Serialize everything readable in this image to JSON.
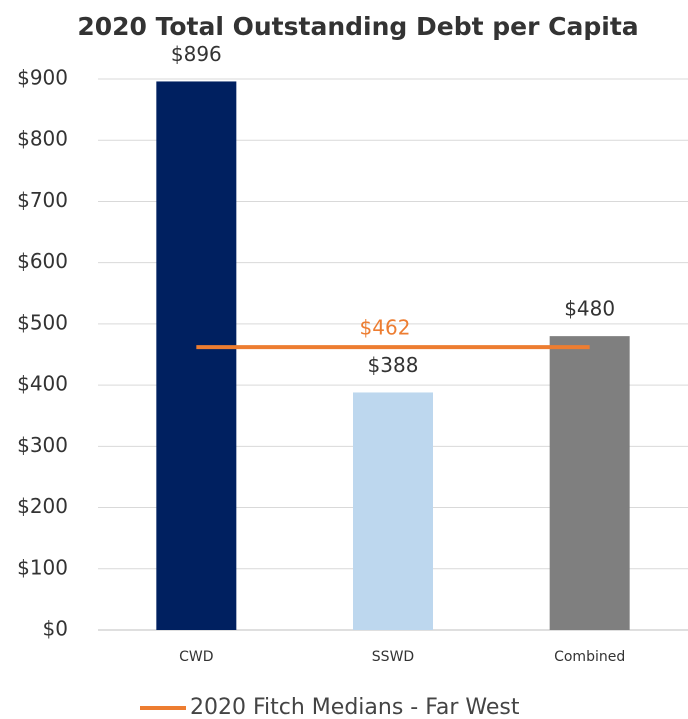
{
  "chart_data": {
    "type": "bar",
    "title": "2020 Total Outstanding Debt per Capita",
    "categories": [
      "CWD",
      "SSWD",
      "Combined"
    ],
    "values": [
      896,
      388,
      480
    ],
    "value_labels": [
      "$896",
      "$388",
      "$480"
    ],
    "colors": [
      "#002060",
      "#bdd7ee",
      "#7f7f7f"
    ],
    "ylim": [
      0,
      900
    ],
    "yticks": [
      {
        "value": 0,
        "label": "$0"
      },
      {
        "value": 100,
        "label": "$100"
      },
      {
        "value": 200,
        "label": "$200"
      },
      {
        "value": 300,
        "label": "$300"
      },
      {
        "value": 400,
        "label": "$400"
      },
      {
        "value": 500,
        "label": "$500"
      },
      {
        "value": 600,
        "label": "$600"
      },
      {
        "value": 700,
        "label": "$700"
      },
      {
        "value": 800,
        "label": "$800"
      },
      {
        "value": 900,
        "label": "$900"
      }
    ],
    "grid": true,
    "reference_line": {
      "name": "2020 Fitch Medians - Far West",
      "value": 462,
      "label": "$462",
      "color": "#ed7d31"
    },
    "legend": "bottom"
  }
}
